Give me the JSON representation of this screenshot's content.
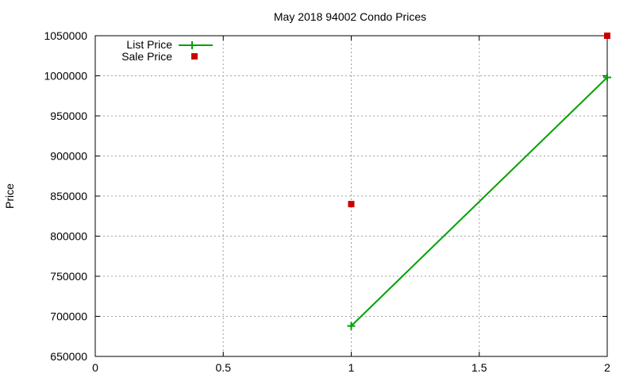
{
  "chart_data": {
    "type": "line",
    "title": "May 2018 94002 Condo Prices",
    "xlabel": "",
    "ylabel": "Price",
    "xlim": [
      0,
      2
    ],
    "ylim": [
      650000,
      1050000
    ],
    "x_ticks": [
      "0",
      "0.5",
      "1",
      "1.5",
      "2"
    ],
    "y_ticks": [
      "650000",
      "700000",
      "750000",
      "800000",
      "850000",
      "900000",
      "950000",
      "1000000",
      "1050000"
    ],
    "grid": true,
    "legend_position": "top-left",
    "series": [
      {
        "name": "List Price",
        "style": "lines+points",
        "color": "#00a000",
        "x": [
          1,
          2
        ],
        "values": [
          688000,
          998000
        ]
      },
      {
        "name": "Sale Price",
        "style": "points",
        "color": "#cc0000",
        "x": [
          1,
          2
        ],
        "values": [
          840000,
          1050000
        ]
      }
    ]
  }
}
